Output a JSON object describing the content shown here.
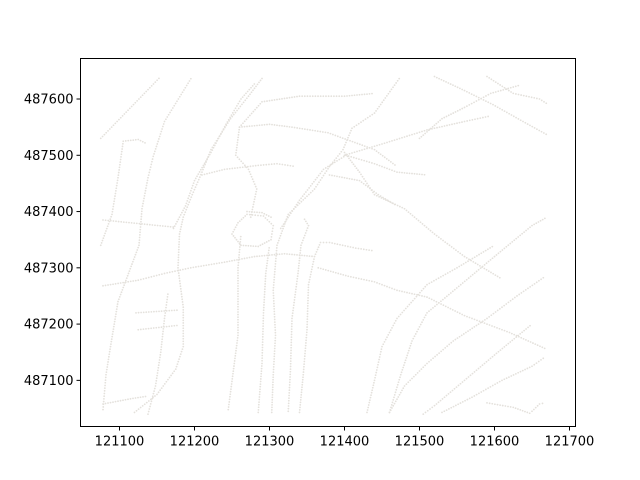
{
  "chart_data": {
    "type": "scatter",
    "title": "",
    "xlabel": "",
    "ylabel": "",
    "xlim": [
      121048,
      121708
    ],
    "ylim": [
      487018,
      487672
    ],
    "grid": false,
    "legend": "none",
    "x_ticks": [
      121100,
      121200,
      121300,
      121400,
      121500,
      121600,
      121700
    ],
    "y_ticks": [
      487100,
      487200,
      487300,
      487400,
      487500,
      487600
    ],
    "point_color": "#e4e1dc",
    "paths": [
      {
        "name": "",
        "points": [
          [
            121075,
            487530
          ],
          [
            121155,
            487640
          ]
        ]
      },
      {
        "name": "",
        "points": [
          [
            121075,
            487340
          ],
          [
            121090,
            487395
          ],
          [
            121098,
            487460
          ],
          [
            121105,
            487525
          ]
        ]
      },
      {
        "name": "",
        "points": [
          [
            121105,
            487525
          ],
          [
            121125,
            487528
          ],
          [
            121137,
            487520
          ]
        ]
      },
      {
        "name": "",
        "points": [
          [
            121078,
            487048
          ],
          [
            121082,
            487110
          ],
          [
            121088,
            487160
          ],
          [
            121098,
            487240
          ],
          [
            121112,
            487290
          ],
          [
            121126,
            487340
          ],
          [
            121130,
            487405
          ],
          [
            121138,
            487460
          ],
          [
            121145,
            487498
          ],
          [
            121160,
            487560
          ],
          [
            121197,
            487640
          ]
        ]
      },
      {
        "name": "",
        "points": [
          [
            121138,
            487040
          ],
          [
            121148,
            487090
          ],
          [
            121155,
            487150
          ],
          [
            121160,
            487210
          ],
          [
            121165,
            487258
          ]
        ]
      },
      {
        "name": "",
        "points": [
          [
            121120,
            487043
          ],
          [
            121150,
            487075
          ],
          [
            121175,
            487120
          ],
          [
            121185,
            487160
          ],
          [
            121185,
            487230
          ],
          [
            121178,
            487300
          ],
          [
            121180,
            487360
          ],
          [
            121185,
            487390
          ],
          [
            121197,
            487430
          ],
          [
            121210,
            487470
          ],
          [
            121222,
            487510
          ],
          [
            121248,
            487565
          ],
          [
            121272,
            487605
          ],
          [
            121292,
            487640
          ]
        ]
      },
      {
        "name": "",
        "points": [
          [
            121172,
            487370
          ],
          [
            121188,
            487410
          ],
          [
            121200,
            487455
          ],
          [
            121222,
            487505
          ],
          [
            121242,
            487555
          ],
          [
            121262,
            487600
          ],
          [
            121282,
            487630
          ]
        ]
      },
      {
        "name": "",
        "points": [
          [
            121078,
            487385
          ],
          [
            121130,
            487378
          ],
          [
            121175,
            487372
          ]
        ]
      },
      {
        "name": "",
        "points": [
          [
            121078,
            487268
          ],
          [
            121125,
            487278
          ],
          [
            121160,
            487290
          ],
          [
            121195,
            487300
          ],
          [
            121240,
            487310
          ],
          [
            121280,
            487320
          ],
          [
            121320,
            487325
          ],
          [
            121360,
            487320
          ]
        ]
      },
      {
        "name": "",
        "points": [
          [
            121122,
            487220
          ],
          [
            121180,
            487225
          ]
        ]
      },
      {
        "name": "",
        "points": [
          [
            121125,
            487190
          ],
          [
            121180,
            487198
          ]
        ]
      },
      {
        "name": "",
        "points": [
          [
            121078,
            487058
          ],
          [
            121118,
            487068
          ],
          [
            121138,
            487072
          ]
        ]
      },
      {
        "name": "",
        "points": [
          [
            121210,
            487465
          ],
          [
            121240,
            487475
          ],
          [
            121285,
            487482
          ],
          [
            121310,
            487485
          ],
          [
            121335,
            487480
          ]
        ]
      },
      {
        "name": "",
        "points": [
          [
            121275,
            487390
          ],
          [
            121283,
            487440
          ],
          [
            121272,
            487475
          ],
          [
            121255,
            487500
          ],
          [
            121260,
            487550
          ],
          [
            121290,
            487595
          ],
          [
            121340,
            487605
          ],
          [
            121400,
            487605
          ],
          [
            121440,
            487610
          ]
        ]
      },
      {
        "name": "",
        "points": [
          [
            121260,
            487550
          ],
          [
            121300,
            487555
          ],
          [
            121330,
            487550
          ],
          [
            121378,
            487540
          ],
          [
            121440,
            487510
          ],
          [
            121470,
            487480
          ]
        ]
      },
      {
        "name": "",
        "points": [
          [
            121245,
            487048
          ],
          [
            121258,
            487180
          ],
          [
            121258,
            487300
          ],
          [
            121262,
            487360
          ]
        ]
      },
      {
        "name": "",
        "points": [
          [
            121250,
            487360
          ],
          [
            121258,
            487380
          ],
          [
            121270,
            487395
          ],
          [
            121292,
            487392
          ],
          [
            121305,
            487375
          ],
          [
            121302,
            487350
          ],
          [
            121285,
            487338
          ],
          [
            121262,
            487340
          ],
          [
            121250,
            487360
          ]
        ]
      },
      {
        "name": "",
        "points": [
          [
            121270,
            487400
          ],
          [
            121290,
            487398
          ],
          [
            121305,
            487388
          ]
        ]
      },
      {
        "name": "",
        "points": [
          [
            121285,
            487043
          ],
          [
            121290,
            487130
          ],
          [
            121292,
            487220
          ],
          [
            121295,
            487290
          ],
          [
            121300,
            487340
          ]
        ]
      },
      {
        "name": "",
        "points": [
          [
            121303,
            487043
          ],
          [
            121305,
            487110
          ],
          [
            121308,
            487180
          ],
          [
            121305,
            487260
          ],
          [
            121310,
            487340
          ],
          [
            121325,
            487395
          ],
          [
            121360,
            487440
          ],
          [
            121380,
            487480
          ],
          [
            121398,
            487510
          ],
          [
            121410,
            487548
          ],
          [
            121440,
            487575
          ],
          [
            121475,
            487640
          ]
        ]
      },
      {
        "name": "",
        "points": [
          [
            121315,
            487370
          ],
          [
            121340,
            487420
          ],
          [
            121372,
            487475
          ],
          [
            121402,
            487500
          ],
          [
            121440,
            487485
          ],
          [
            121470,
            487470
          ],
          [
            121510,
            487465
          ]
        ]
      },
      {
        "name": "",
        "points": [
          [
            121325,
            487045
          ],
          [
            121328,
            487120
          ],
          [
            121330,
            487210
          ],
          [
            121338,
            487290
          ],
          [
            121342,
            487340
          ],
          [
            121352,
            487375
          ],
          [
            121345,
            487390
          ]
        ]
      },
      {
        "name": "",
        "points": [
          [
            121340,
            487043
          ],
          [
            121345,
            487110
          ],
          [
            121350,
            487190
          ],
          [
            121352,
            487270
          ],
          [
            121360,
            487320
          ],
          [
            121368,
            487345
          ],
          [
            121380,
            487345
          ],
          [
            121415,
            487335
          ],
          [
            121440,
            487330
          ]
        ]
      },
      {
        "name": "",
        "points": [
          [
            121365,
            487300
          ],
          [
            121405,
            487285
          ],
          [
            121440,
            487275
          ],
          [
            121470,
            487260
          ],
          [
            121510,
            487248
          ],
          [
            121560,
            487215
          ],
          [
            121620,
            487185
          ],
          [
            121670,
            487155
          ]
        ]
      },
      {
        "name": "",
        "points": [
          [
            121380,
            487465
          ],
          [
            121420,
            487455
          ],
          [
            121445,
            487430
          ],
          [
            121470,
            487410
          ]
        ]
      },
      {
        "name": "",
        "points": [
          [
            121400,
            487505
          ],
          [
            121420,
            487470
          ],
          [
            121440,
            487430
          ],
          [
            121480,
            487405
          ],
          [
            121520,
            487360
          ],
          [
            121560,
            487320
          ],
          [
            121610,
            487280
          ]
        ]
      },
      {
        "name": "",
        "points": [
          [
            121400,
            487500
          ],
          [
            121450,
            487520
          ],
          [
            121510,
            487545
          ],
          [
            121560,
            487560
          ],
          [
            121595,
            487570
          ]
        ]
      },
      {
        "name": "",
        "points": [
          [
            121430,
            487043
          ],
          [
            121440,
            487100
          ],
          [
            121450,
            487160
          ],
          [
            121470,
            487210
          ],
          [
            121510,
            487270
          ],
          [
            121550,
            487300
          ],
          [
            121600,
            487340
          ]
        ]
      },
      {
        "name": "",
        "points": [
          [
            121460,
            487043
          ],
          [
            121475,
            487110
          ],
          [
            121490,
            487170
          ],
          [
            121510,
            487220
          ],
          [
            121555,
            487270
          ],
          [
            121600,
            487320
          ],
          [
            121650,
            487375
          ],
          [
            121670,
            487390
          ]
        ]
      },
      {
        "name": "",
        "points": [
          [
            121460,
            487043
          ],
          [
            121480,
            487090
          ],
          [
            121510,
            487130
          ],
          [
            121545,
            487170
          ],
          [
            121590,
            487210
          ],
          [
            121630,
            487250
          ],
          [
            121668,
            487285
          ]
        ]
      },
      {
        "name": "",
        "points": [
          [
            121505,
            487040
          ],
          [
            121520,
            487055
          ],
          [
            121560,
            487100
          ],
          [
            121600,
            487145
          ],
          [
            121650,
            487200
          ]
        ]
      },
      {
        "name": "",
        "points": [
          [
            121530,
            487043
          ],
          [
            121570,
            487070
          ],
          [
            121610,
            487100
          ],
          [
            121650,
            487125
          ],
          [
            121668,
            487142
          ]
        ]
      },
      {
        "name": "",
        "points": [
          [
            121500,
            487530
          ],
          [
            121530,
            487565
          ],
          [
            121560,
            487585
          ],
          [
            121595,
            487610
          ],
          [
            121635,
            487625
          ]
        ]
      },
      {
        "name": "",
        "points": [
          [
            121520,
            487640
          ],
          [
            121560,
            487615
          ],
          [
            121598,
            487590
          ],
          [
            121638,
            487560
          ],
          [
            121672,
            487535
          ]
        ]
      },
      {
        "name": "",
        "points": [
          [
            121590,
            487640
          ],
          [
            121625,
            487610
          ],
          [
            121660,
            487600
          ],
          [
            121672,
            487590
          ]
        ]
      },
      {
        "name": "",
        "points": [
          [
            121590,
            487060
          ],
          [
            121625,
            487052
          ],
          [
            121650,
            487040
          ]
        ]
      },
      {
        "name": "",
        "points": [
          [
            121650,
            487045
          ],
          [
            121660,
            487058
          ],
          [
            121668,
            487060
          ]
        ]
      }
    ]
  }
}
